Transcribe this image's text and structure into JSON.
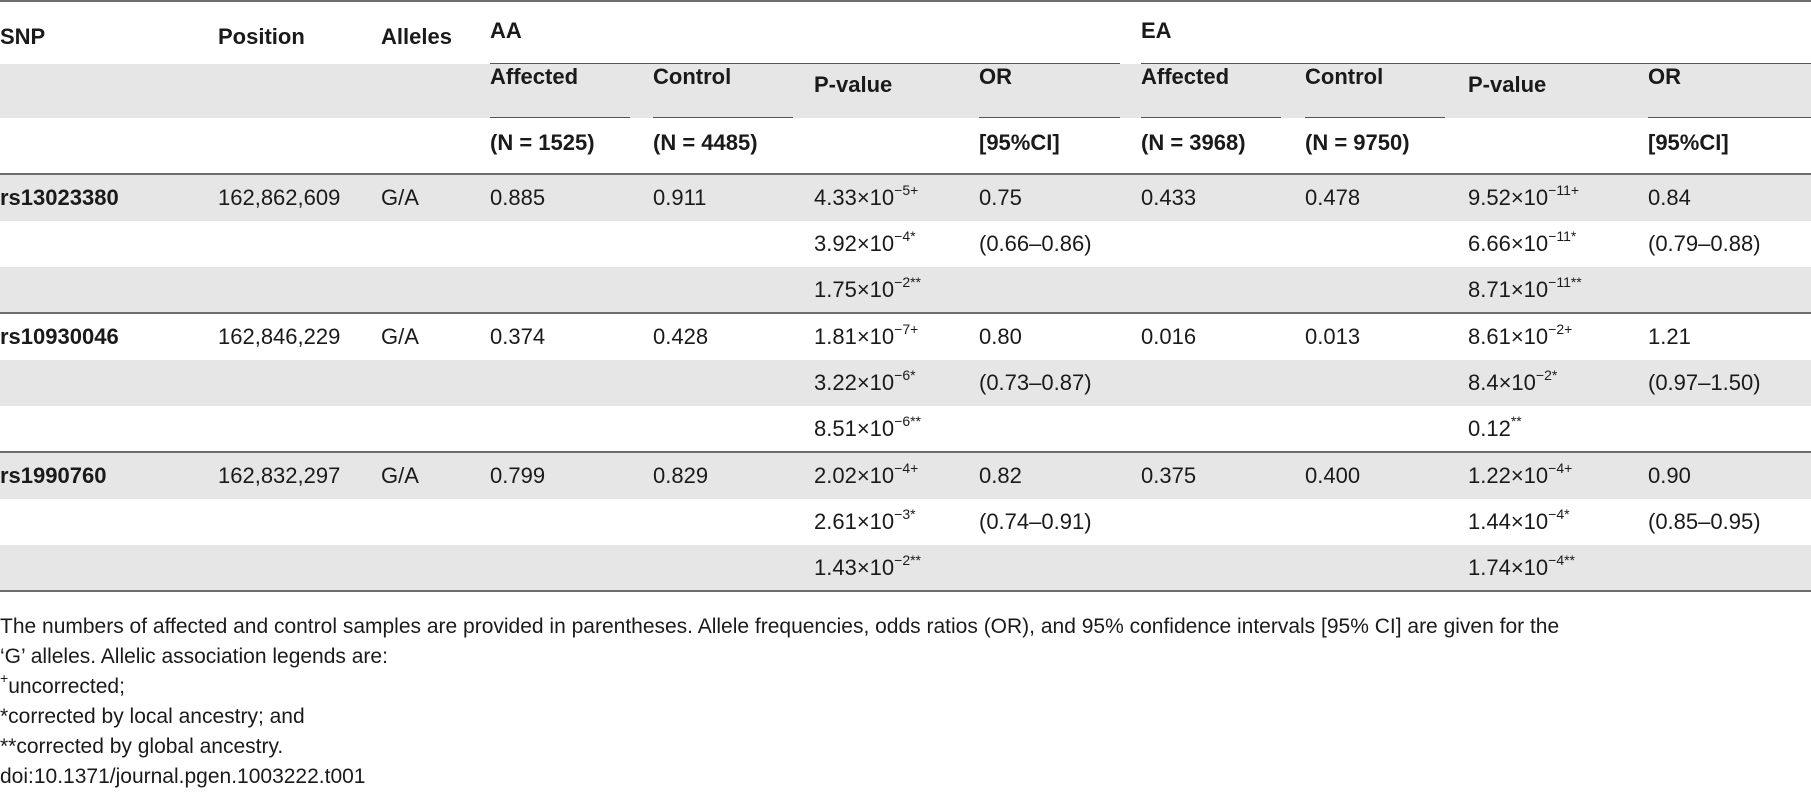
{
  "header": {
    "snp": "SNP",
    "position": "Position",
    "alleles": "Alleles",
    "aa": "AA",
    "ea": "EA",
    "affected": "Affected",
    "control": "Control",
    "pvalue": "P-value",
    "or": "OR",
    "aa_affected_n": "(N = 1525)",
    "aa_control_n": "(N = 4485)",
    "ci": "[95%CI]",
    "ea_affected_n": "(N = 3968)",
    "ea_control_n": "(N = 9750)"
  },
  "rows": [
    {
      "snp": "rs13023380",
      "position": "162,862,609",
      "alleles": "G/A",
      "aa_aff": "0.885",
      "aa_ctl": "0.911",
      "aa_p1": "4.33×10",
      "aa_p1e": "−5+",
      "aa_or": "0.75",
      "ea_aff": "0.433",
      "ea_ctl": "0.478",
      "ea_p1": "9.52×10",
      "ea_p1e": "−11+",
      "ea_or": "0.84",
      "aa_p2": "3.92×10",
      "aa_p2e": "−4*",
      "aa_ci": "(0.66–0.86)",
      "ea_p2": "6.66×10",
      "ea_p2e": "−11*",
      "ea_ci": "(0.79–0.88)",
      "aa_p3": "1.75×10",
      "aa_p3e": "−2**",
      "ea_p3": "8.71×10",
      "ea_p3e": "−11**"
    },
    {
      "snp": "rs10930046",
      "position": "162,846,229",
      "alleles": "G/A",
      "aa_aff": "0.374",
      "aa_ctl": "0.428",
      "aa_p1": "1.81×10",
      "aa_p1e": "−7+",
      "aa_or": "0.80",
      "ea_aff": "0.016",
      "ea_ctl": "0.013",
      "ea_p1": "8.61×10",
      "ea_p1e": "−2+",
      "ea_or": "1.21",
      "aa_p2": "3.22×10",
      "aa_p2e": "−6*",
      "aa_ci": "(0.73–0.87)",
      "ea_p2": "8.4×10",
      "ea_p2e": "−2*",
      "ea_ci": "(0.97–1.50)",
      "aa_p3": "8.51×10",
      "aa_p3e": "−6**",
      "ea_p3": "0.12",
      "ea_p3e": "**"
    },
    {
      "snp": "rs1990760",
      "position": "162,832,297",
      "alleles": "G/A",
      "aa_aff": "0.799",
      "aa_ctl": "0.829",
      "aa_p1": "2.02×10",
      "aa_p1e": "−4+",
      "aa_or": "0.82",
      "ea_aff": "0.375",
      "ea_ctl": "0.400",
      "ea_p1": "1.22×10",
      "ea_p1e": "−4+",
      "ea_or": "0.90",
      "aa_p2": "2.61×10",
      "aa_p2e": "−3*",
      "aa_ci": "(0.74–0.91)",
      "ea_p2": "1.44×10",
      "ea_p2e": "−4*",
      "ea_ci": "(0.85–0.95)",
      "aa_p3": "1.43×10",
      "aa_p3e": "−2**",
      "ea_p3": "1.74×10",
      "ea_p3e": "−4**"
    }
  ],
  "notes": {
    "line1": "The numbers of affected and control samples are provided in parentheses. Allele frequencies, odds ratios (OR), and 95% confidence intervals [95% CI] are given for the",
    "line2": "‘G’ alleles. Allelic association legends are:",
    "line3_sup": "+",
    "line3": "uncorrected;",
    "line4": "*corrected by local ancestry; and",
    "line5": "**corrected by global ancestry.",
    "doi": "doi:10.1371/journal.pgen.1003222.t001"
  }
}
